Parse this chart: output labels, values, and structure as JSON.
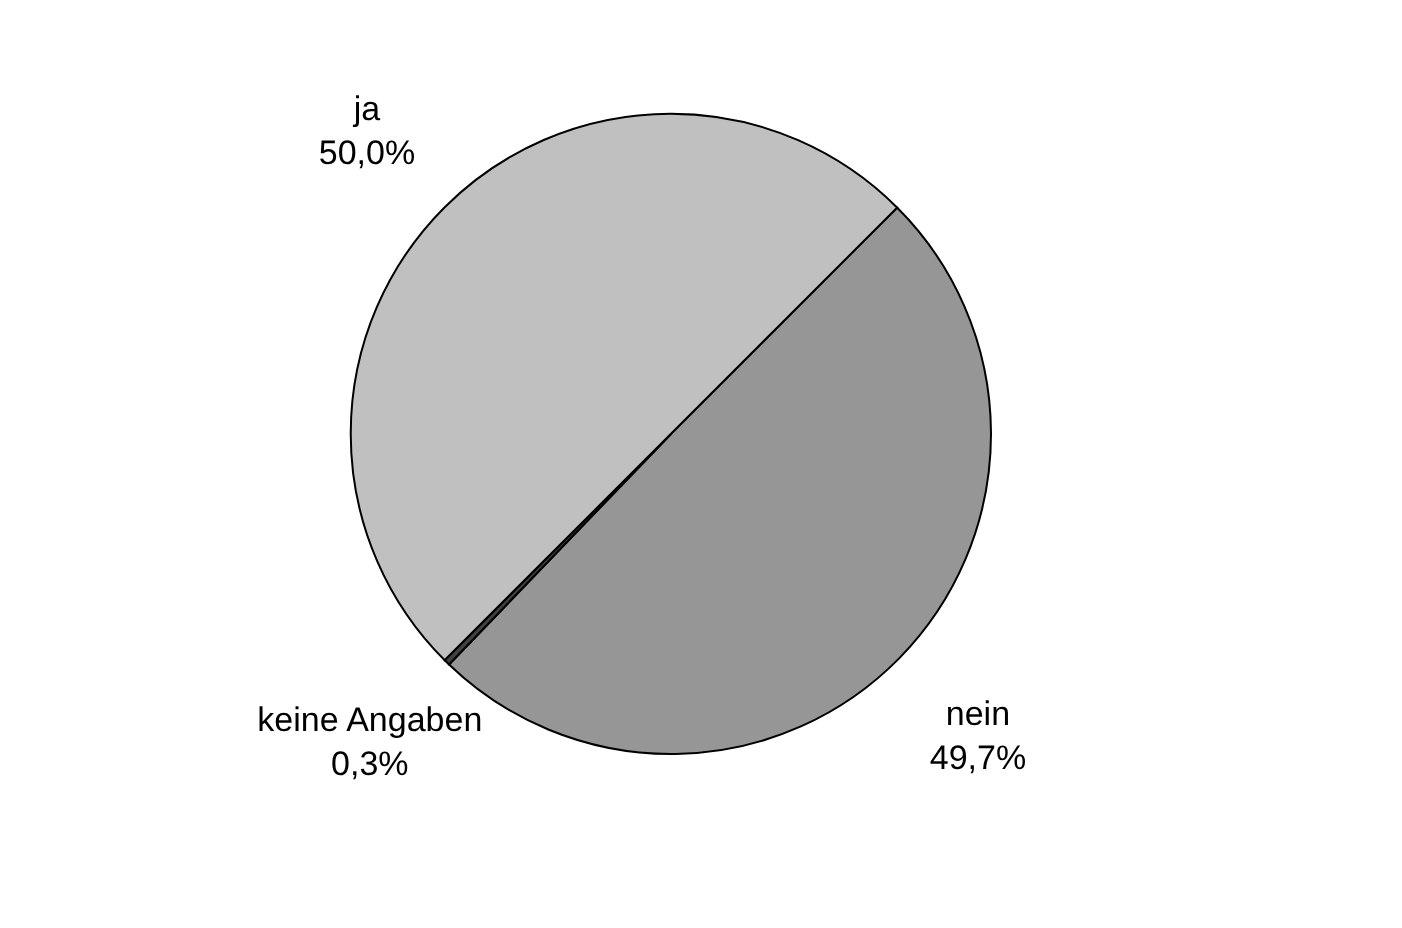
{
  "chart_data": {
    "type": "pie",
    "categories": [
      "ja",
      "nein",
      "keine Angaben"
    ],
    "values": [
      50.0,
      49.7,
      0.3
    ],
    "colors": [
      "#c0c0c0",
      "#969696",
      "#404040"
    ],
    "value_labels": [
      "50,0%",
      "49,7%",
      "0,3%"
    ]
  }
}
